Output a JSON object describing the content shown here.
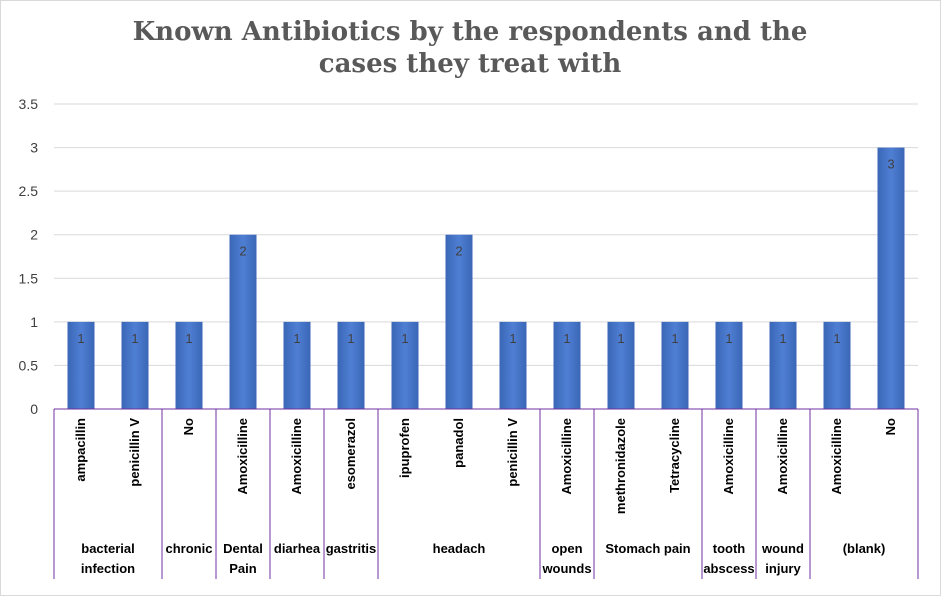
{
  "chart_data": {
    "type": "bar",
    "title": "Known Antibiotics by the respondents and the cases they treat with",
    "ylim": [
      0,
      3.5
    ],
    "yticks": [
      "0",
      "0.5",
      "1",
      "1.5",
      "2",
      "2.5",
      "3",
      "3.5"
    ],
    "grid": true,
    "legend": "none",
    "bar_color": "#4472c4",
    "groups": [
      {
        "label_lines": [
          "bacterial",
          "infection"
        ],
        "categories": [
          "ampacillin",
          "penicillin V"
        ],
        "values": [
          1,
          1
        ]
      },
      {
        "label_lines": [
          "chronic"
        ],
        "categories": [
          "No"
        ],
        "values": [
          1
        ]
      },
      {
        "label_lines": [
          "Dental",
          "Pain"
        ],
        "categories": [
          "Amoxicilline"
        ],
        "values": [
          2
        ]
      },
      {
        "label_lines": [
          "diarhea"
        ],
        "categories": [
          "Amoxicilline"
        ],
        "values": [
          1
        ]
      },
      {
        "label_lines": [
          "gastritis"
        ],
        "categories": [
          "esomerazol"
        ],
        "values": [
          1
        ]
      },
      {
        "label_lines": [
          "headach"
        ],
        "categories": [
          "ipuprofen",
          "panadol",
          "penicillin V"
        ],
        "values": [
          1,
          2,
          1
        ]
      },
      {
        "label_lines": [
          "open",
          "wounds"
        ],
        "categories": [
          "Amoxicilline"
        ],
        "values": [
          1
        ]
      },
      {
        "label_lines": [
          "Stomach  pain"
        ],
        "categories": [
          "methronidazole",
          "Tetracycline"
        ],
        "values": [
          1,
          1
        ]
      },
      {
        "label_lines": [
          "tooth",
          "abscess"
        ],
        "categories": [
          "Amoxicilline"
        ],
        "values": [
          1
        ]
      },
      {
        "label_lines": [
          "wound",
          "injury"
        ],
        "categories": [
          "Amoxicilline"
        ],
        "values": [
          1
        ]
      },
      {
        "label_lines": [
          "(blank)"
        ],
        "categories": [
          "Amoxicilline",
          "No"
        ],
        "values": [
          1,
          3
        ]
      }
    ]
  }
}
